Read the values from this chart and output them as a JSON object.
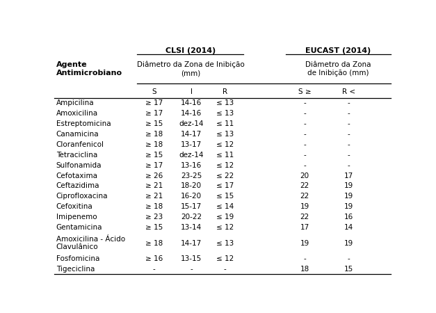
{
  "rows": [
    [
      "Ampicilina",
      "≥ 17",
      "14-16",
      "≤ 13",
      "-",
      "-"
    ],
    [
      "Amoxicilina",
      "≥ 17",
      "14-16",
      "≤ 13",
      "-",
      "-"
    ],
    [
      "Estreptomicina",
      "≥ 15",
      "dez-14",
      "≤ 11",
      "-",
      "-"
    ],
    [
      "Canamicina",
      "≥ 18",
      "14-17",
      "≤ 13",
      "-",
      "-"
    ],
    [
      "Cloranfenicol",
      "≥ 18",
      "13-17",
      "≤ 12",
      "-",
      "-"
    ],
    [
      "Tetraciclina",
      "≥ 15",
      "dez-14",
      "≤ 11",
      "-",
      "-"
    ],
    [
      "Sulfonamida",
      "≥ 17",
      "13-16",
      "≤ 12",
      "-",
      "-"
    ],
    [
      "Cefotaxima",
      "≥ 26",
      "23-25",
      "≤ 22",
      "20",
      "17"
    ],
    [
      "Ceftazidima",
      "≥ 21",
      "18-20",
      "≤ 17",
      "22",
      "19"
    ],
    [
      "Ciprofloxacina",
      "≥ 21",
      "16-20",
      "≤ 15",
      "22",
      "19"
    ],
    [
      "Cefoxitina",
      "≥ 18",
      "15-17",
      "≤ 14",
      "19",
      "19"
    ],
    [
      "Imipenemo",
      "≥ 23",
      "20-22",
      "≤ 19",
      "22",
      "16"
    ],
    [
      "Gentamicina",
      "≥ 15",
      "13-14",
      "≤ 12",
      "17",
      "14"
    ],
    [
      "Amoxicilina - Ácido\nClavulânico",
      "≥ 18",
      "14-17",
      "≤ 13",
      "19",
      "19"
    ],
    [
      "Fosfomicina",
      "≥ 16",
      "13-15",
      "≤ 12",
      "-",
      "-"
    ],
    [
      "Tigeciclina",
      "-",
      "-",
      "-",
      "18",
      "15"
    ]
  ],
  "bg_color": "#ffffff",
  "line_color": "#000000",
  "font_size": 7.5,
  "bold_font_size": 8.0
}
